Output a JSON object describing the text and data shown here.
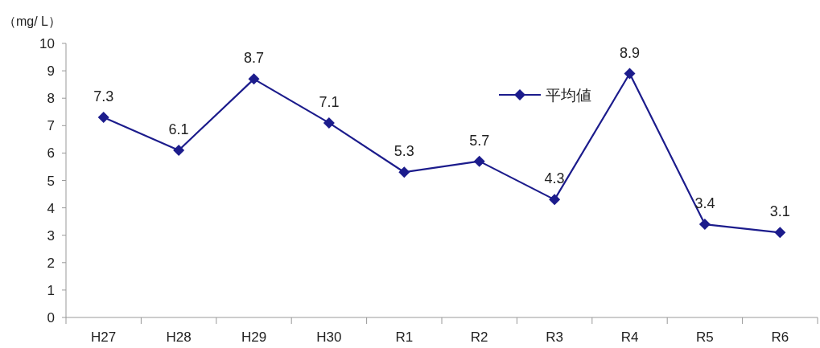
{
  "chart_data": {
    "type": "line",
    "ylabel": "（mg/ L）",
    "categories": [
      "H27",
      "H28",
      "H29",
      "H30",
      "R1",
      "R2",
      "R3",
      "R4",
      "R5",
      "R6"
    ],
    "series": [
      {
        "name": "平均値",
        "color": "#1c1c8c",
        "values": [
          7.3,
          6.1,
          8.7,
          7.1,
          5.3,
          5.7,
          4.3,
          8.9,
          3.4,
          3.1
        ]
      }
    ],
    "ylim": [
      0,
      10
    ],
    "yticks": [
      0,
      1,
      2,
      3,
      4,
      5,
      6,
      7,
      8,
      9,
      10
    ],
    "data_labels": true,
    "marker": "diamond",
    "line_style": "solid",
    "legend": "top right",
    "grid": false
  }
}
